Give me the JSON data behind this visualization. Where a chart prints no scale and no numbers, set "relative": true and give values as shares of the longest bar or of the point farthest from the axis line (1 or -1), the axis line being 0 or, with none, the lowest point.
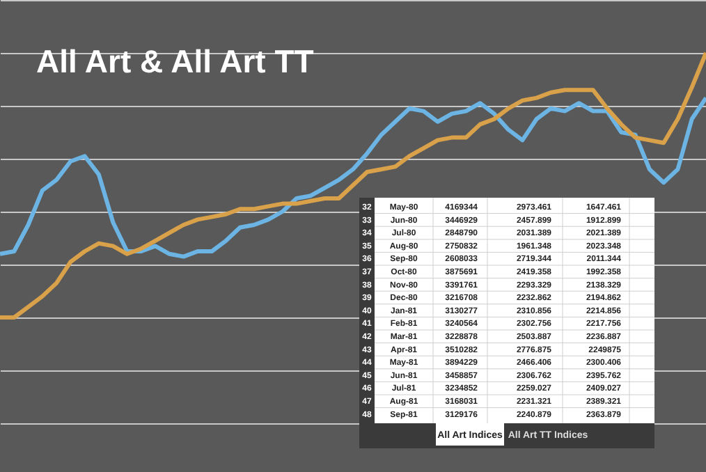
{
  "chart_data": {
    "type": "line",
    "title": "All Art & All Art TT",
    "relative": true,
    "grid": "y",
    "categories": [
      null,
      null,
      null,
      null,
      null,
      null,
      null,
      null,
      null,
      null,
      null,
      null,
      null,
      null,
      null,
      null,
      null,
      null,
      null,
      null,
      null,
      null,
      null,
      null,
      null,
      null,
      null,
      null,
      null,
      null,
      null,
      null,
      null,
      null,
      null,
      null,
      null,
      null,
      null,
      null,
      null,
      null,
      null,
      null,
      null,
      null,
      null,
      null,
      null,
      null,
      null
    ],
    "series": [
      {
        "color": "#6cb4e4",
        "values": [
          0.24,
          0.25,
          0.35,
          0.48,
          0.52,
          0.59,
          0.61,
          0.54,
          0.36,
          0.25,
          0.25,
          0.27,
          0.24,
          0.23,
          0.25,
          0.25,
          0.29,
          0.34,
          0.35,
          0.37,
          0.4,
          0.45,
          0.46,
          0.49,
          0.52,
          0.56,
          0.62,
          0.69,
          0.74,
          0.79,
          0.78,
          0.74,
          0.77,
          0.78,
          0.81,
          0.77,
          0.71,
          0.67,
          0.75,
          0.79,
          0.78,
          0.81,
          0.78,
          0.78,
          0.7,
          0.69,
          0.56,
          0.51,
          0.56,
          0.75,
          0.83
        ]
      },
      {
        "color": "#d9a24a",
        "values": [
          0,
          0,
          0.04,
          0.08,
          0.13,
          0.21,
          0.25,
          0.28,
          0.27,
          0.24,
          0.26,
          0.29,
          0.32,
          0.35,
          0.37,
          0.38,
          0.39,
          0.41,
          0.41,
          0.42,
          0.43,
          0.43,
          0.44,
          0.45,
          0.45,
          0.5,
          0.55,
          0.56,
          0.57,
          0.61,
          0.64,
          0.67,
          0.68,
          0.68,
          0.73,
          0.75,
          0.79,
          0.82,
          0.83,
          0.85,
          0.86,
          0.86,
          0.86,
          0.79,
          0.73,
          0.68,
          0.67,
          0.66,
          0.75,
          0.87,
          1.0
        ]
      }
    ],
    "annotations": [
      "32",
      "May-80",
      "4169344",
      "2973.461",
      "1647.461",
      "33",
      "Jun-80",
      "3446929",
      "2457.899",
      "1912.899",
      "34",
      "Jul-80",
      "2848790",
      "2031.389",
      "2021.389",
      "35",
      "Aug-80",
      "2750832",
      "1961.348",
      "2023.348",
      "36",
      "Sep-80",
      "2608033",
      "2719.344",
      "2011.344",
      "37",
      "Oct-80",
      "3875691",
      "2419.358",
      "1992.358",
      "38",
      "Nov-80",
      "3391761",
      "2293.329",
      "2138.329",
      "39",
      "Dec-80",
      "3216708",
      "2232.862",
      "2194.862",
      "40",
      "Jan-81",
      "3130277",
      "2310.856",
      "2214.856",
      "41",
      "Feb-81",
      "3240564",
      "2302.756",
      "2217.756",
      "42",
      "Mar-81",
      "3228878",
      "2503.887",
      "2236.887",
      "43",
      "Apr-81",
      "3510282",
      "2776.875",
      "2249875",
      "44",
      "May-81",
      "3894229",
      "2466.406",
      "2300.406",
      "45",
      "Jun-81",
      "3458857",
      "2306.762",
      "2395.762",
      "46",
      "Jul-81",
      "3234852",
      "2259.027",
      "2409.027",
      "47",
      "Aug-81",
      "3168031",
      "2231.321",
      "2389.321",
      "48",
      "Sep-81",
      "3129176",
      "2240.879",
      "2363.879",
      "All Art Indices",
      "All Art TT Indices"
    ]
  }
}
